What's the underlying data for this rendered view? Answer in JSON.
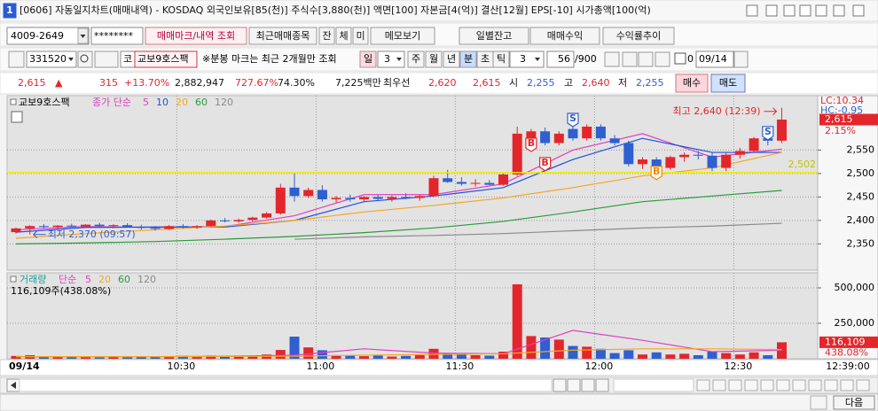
{
  "title_bar": {
    "window_number": "1",
    "title": "[0606] 자동일지차트(매매내역) - KOSDAQ 외국인보유[85(천)] 주식수[3,880(천)] 액면[100] 자본금[4(억)] 결산[12월] EPS[-10] 시가총액[100(억)"
  },
  "toolbar": {
    "account": "4009-2649",
    "password": "********",
    "buttons": [
      "매매마크/내역 조회",
      "최근매매종목",
      "잔",
      "체",
      "미",
      "메모보기",
      "일별잔고",
      "매매수익",
      "수익률추이"
    ]
  },
  "query_bar": {
    "code": "331520",
    "market": "코",
    "name": "교보9호스팩",
    "note": "※분봉 마크는 최근 2개월만 조회",
    "periods": [
      "일",
      "주",
      "월",
      "년",
      "분",
      "초",
      "틱"
    ],
    "day_interval": "3",
    "interval": "3",
    "count": "56",
    "max_count": "/900",
    "checkbox_value": "0",
    "date": "09/14"
  },
  "quote_bar": {
    "price": "2,615",
    "arrow": "▲",
    "change": "315",
    "change_rate": "+13.70%",
    "volume": "2,882,947",
    "volume_rate": "727.67%",
    "turnover": "74.30%",
    "amount": "7,225백만",
    "best_label": "최우선",
    "ask": "2,620",
    "bid": "2,615",
    "open_label": "시",
    "open": "2,255",
    "high_label": "고",
    "high": "2,640",
    "low_label": "저",
    "low": "2,255",
    "buy": "매수",
    "sell": "매도"
  },
  "chart_data": [
    {
      "type": "candlestick",
      "title": "교보9호스팩",
      "ma_label": "종가 단순",
      "categories": [
        "09/14",
        null,
        null,
        null,
        null,
        null,
        null,
        null,
        null,
        null,
        null,
        null,
        "10:30",
        null,
        null,
        null,
        null,
        null,
        null,
        null,
        null,
        null,
        "11:00",
        null,
        null,
        null,
        null,
        null,
        null,
        null,
        null,
        null,
        "11:30",
        null,
        null,
        null,
        null,
        null,
        null,
        null,
        null,
        null,
        "12:00",
        null,
        null,
        null,
        null,
        null,
        null,
        null,
        null,
        null,
        "12:30",
        null,
        null,
        null
      ],
      "open": [
        2375,
        2383,
        2388,
        2386,
        2389,
        2387,
        2391,
        2388,
        2390,
        2386,
        2384,
        2382,
        2388,
        2385,
        2388,
        2400,
        2398,
        2401,
        2406,
        2415,
        2470,
        2452,
        2465,
        2445,
        2448,
        2445,
        2450,
        2446,
        2450,
        2448,
        2452,
        2490,
        2482,
        2478,
        2480,
        2476,
        2498,
        2560,
        2590,
        2565,
        2595,
        2575,
        2600,
        2575,
        2565,
        2520,
        2530,
        2512,
        2535,
        2540,
        2538,
        2512,
        2540,
        2548,
        2575,
        2570
      ],
      "high": [
        2385,
        2390,
        2392,
        2390,
        2393,
        2392,
        2395,
        2392,
        2394,
        2391,
        2388,
        2390,
        2392,
        2390,
        2402,
        2405,
        2404,
        2408,
        2418,
        2478,
        2500,
        2470,
        2475,
        2452,
        2455,
        2452,
        2455,
        2453,
        2458,
        2455,
        2495,
        2508,
        2492,
        2488,
        2486,
        2500,
        2600,
        2595,
        2598,
        2590,
        2615,
        2605,
        2605,
        2582,
        2570,
        2535,
        2535,
        2538,
        2545,
        2548,
        2545,
        2545,
        2555,
        2578,
        2590,
        2640
      ],
      "low": [
        2372,
        2370,
        2383,
        2382,
        2385,
        2384,
        2386,
        2383,
        2385,
        2380,
        2378,
        2380,
        2383,
        2382,
        2386,
        2396,
        2395,
        2398,
        2404,
        2412,
        2440,
        2448,
        2440,
        2438,
        2440,
        2440,
        2443,
        2440,
        2445,
        2442,
        2450,
        2480,
        2474,
        2472,
        2475,
        2474,
        2495,
        2555,
        2560,
        2560,
        2570,
        2570,
        2570,
        2560,
        2515,
        2510,
        2500,
        2508,
        2525,
        2530,
        2505,
        2505,
        2532,
        2545,
        2560,
        2565
      ],
      "close": [
        2383,
        2388,
        2386,
        2389,
        2387,
        2391,
        2388,
        2390,
        2386,
        2384,
        2382,
        2388,
        2385,
        2388,
        2400,
        2398,
        2401,
        2406,
        2415,
        2470,
        2452,
        2465,
        2445,
        2448,
        2445,
        2450,
        2446,
        2450,
        2448,
        2452,
        2490,
        2482,
        2478,
        2480,
        2476,
        2498,
        2585,
        2590,
        2565,
        2585,
        2575,
        2600,
        2575,
        2565,
        2520,
        2530,
        2512,
        2535,
        2540,
        2538,
        2512,
        2540,
        2548,
        2575,
        2570,
        2615
      ],
      "up_color": "#e3262b",
      "down_color": "#2f5fd0",
      "ylim": [
        2294,
        2666
      ],
      "yticks": [
        {
          "value": 2350,
          "label": "2,350"
        },
        {
          "value": 2400,
          "label": "2,400"
        },
        {
          "value": 2450,
          "label": "2,450"
        },
        {
          "value": 2500,
          "label": "2,500"
        },
        {
          "value": 2550,
          "label": "2,550"
        }
      ],
      "grid": true,
      "ma_x": [
        0,
        5,
        10,
        15,
        20,
        25,
        30,
        35,
        40,
        45,
        50,
        55
      ],
      "moving_averages": [
        {
          "name": "5",
          "color": "#e040c0",
          "values": [
            2380,
            2387,
            2385,
            2387,
            2410,
            2455,
            2455,
            2478,
            2550,
            2585,
            2535,
            2552
          ]
        },
        {
          "name": "10",
          "color": "#2050e0",
          "values": [
            2375,
            2385,
            2386,
            2386,
            2400,
            2440,
            2452,
            2470,
            2530,
            2575,
            2545,
            2545
          ]
        },
        {
          "name": "20",
          "color": "#f5a623",
          "values": [
            2362,
            2372,
            2380,
            2388,
            2400,
            2418,
            2432,
            2448,
            2470,
            2495,
            2512,
            2545
          ]
        },
        {
          "name": "60",
          "color": "#2a9a3a",
          "values": [
            2350,
            2352,
            2355,
            2360,
            2366,
            2374,
            2384,
            2398,
            2418,
            2440,
            2452,
            2464
          ]
        },
        {
          "name": "120",
          "color": "#8a8a8a",
          "values": [
            null,
            null,
            null,
            null,
            2360,
            2365,
            2368,
            2372,
            2378,
            2384,
            2388,
            2394
          ]
        }
      ],
      "avg_price_line": {
        "value": 2502,
        "label": "2,502",
        "color": "#f2ee00"
      },
      "current": {
        "value": 2615,
        "label": "2,615"
      },
      "rate_label": "2.15%",
      "lc_label": "LC:10.34",
      "hc_label": "HC:-0.95",
      "max_annotation": {
        "label": "최고 2,640 (12:39)",
        "index": 55,
        "value": 2640
      },
      "min_annotation": {
        "label": "최저 2,370 (09:57)",
        "index": 1,
        "value": 2370
      },
      "trade_marks": [
        {
          "label": "B",
          "index": 37,
          "value": 2562,
          "color": "#e3262b"
        },
        {
          "label": "B",
          "index": 38,
          "value": 2521,
          "color": "#e3262b"
        },
        {
          "label": "S",
          "index": 40,
          "value": 2615,
          "color": "#2f5fd0"
        },
        {
          "label": "B",
          "index": 46,
          "value": 2502,
          "color": "#f08a00"
        },
        {
          "label": "S",
          "index": 54,
          "value": 2587,
          "color": "#2f5fd0"
        }
      ],
      "x_end_label": "12:39:00"
    },
    {
      "type": "bar",
      "title": "거래량",
      "title_color": "#1a9a9a",
      "ma_label": "단순",
      "values": [
        20000,
        25000,
        15000,
        12000,
        18000,
        10000,
        9000,
        14000,
        11000,
        16000,
        13000,
        15000,
        20000,
        12000,
        22000,
        18000,
        15000,
        20000,
        30000,
        62000,
        156000,
        80000,
        60000,
        20000,
        25000,
        18000,
        22000,
        15000,
        20000,
        25000,
        70000,
        40000,
        30000,
        25000,
        22000,
        50000,
        525000,
        160000,
        150000,
        135000,
        90000,
        85000,
        70000,
        40000,
        60000,
        30000,
        45000,
        30000,
        35000,
        25000,
        50000,
        40000,
        30000,
        45000,
        25000,
        116109
      ],
      "ylim": [
        0,
        606000
      ],
      "yticks": [
        {
          "value": 250000,
          "label": "250,000"
        },
        {
          "value": 500000,
          "label": "500,000"
        }
      ],
      "grid": true,
      "ma_x": [
        0,
        5,
        10,
        15,
        20,
        25,
        30,
        35,
        40,
        45,
        50,
        55
      ],
      "moving_averages": [
        {
          "name": "5",
          "color": "#e040c0",
          "values": [
            15000,
            14000,
            15000,
            17000,
            25000,
            70000,
            40000,
            35000,
            200000,
            130000,
            50000,
            60000
          ]
        },
        {
          "name": "20",
          "color": "#f5a623",
          "values": [
            15000,
            15000,
            15000,
            16000,
            18000,
            25000,
            30000,
            35000,
            60000,
            70000,
            70000,
            65000
          ]
        },
        {
          "name": "60",
          "color": "#2a9a3a"
        },
        {
          "name": "120",
          "color": "#8a8a8a"
        }
      ],
      "summary": "116,109주(438.08%)",
      "last_label": "116,109",
      "last_rate_label": "438.08%"
    }
  ],
  "status_bar": {
    "next": "다음"
  }
}
